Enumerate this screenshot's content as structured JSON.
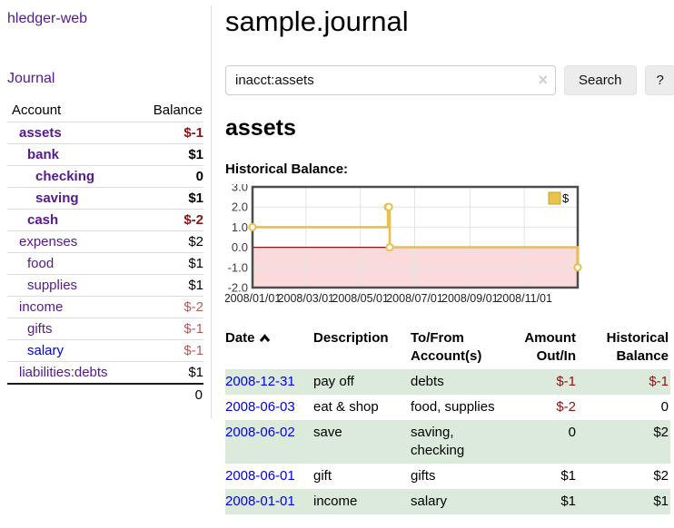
{
  "sidebar": {
    "brand": "hledger-web",
    "nav_journal": "Journal",
    "accounts": {
      "col_account": "Account",
      "col_balance": "Balance",
      "rows": [
        {
          "name": "assets",
          "balance": "$-1",
          "level": 1,
          "strong": true,
          "name_color": "purple",
          "balance_class": "neg-strong"
        },
        {
          "name": "bank",
          "balance": "$1",
          "level": 2,
          "strong": true,
          "name_color": "purple",
          "balance_class": "strong"
        },
        {
          "name": "checking",
          "balance": "0",
          "level": 3,
          "strong": true,
          "name_color": "purple",
          "balance_class": "strong"
        },
        {
          "name": "saving",
          "balance": "$1",
          "level": 3,
          "strong": true,
          "name_color": "purple",
          "balance_class": "strong"
        },
        {
          "name": "cash",
          "balance": "$-2",
          "level": 2,
          "strong": true,
          "name_color": "purple",
          "balance_class": "neg-strong"
        },
        {
          "name": "expenses",
          "balance": "$2",
          "level": 1,
          "strong": false,
          "name_color": "purple",
          "balance_class": "plain"
        },
        {
          "name": "food",
          "balance": "$1",
          "level": 2,
          "strong": false,
          "name_color": "purple",
          "balance_class": "plain"
        },
        {
          "name": "supplies",
          "balance": "$1",
          "level": 2,
          "strong": false,
          "name_color": "purple",
          "balance_class": "plain"
        },
        {
          "name": "income",
          "balance": "$-2",
          "level": 1,
          "strong": false,
          "name_color": "purple",
          "balance_class": "neg-soft"
        },
        {
          "name": "gifts",
          "balance": "$-1",
          "level": 2,
          "strong": false,
          "name_color": "purple",
          "balance_class": "neg-soft"
        },
        {
          "name": "salary",
          "balance": "$-1",
          "level": 2,
          "strong": false,
          "name_color": "blue",
          "balance_class": "neg-soft"
        },
        {
          "name": "liabilities:debts",
          "balance": "$1",
          "level": 1,
          "strong": false,
          "name_color": "purple",
          "balance_class": "plain"
        }
      ],
      "total": "0"
    }
  },
  "main": {
    "title": "sample.journal",
    "search": {
      "value": "inacct:assets",
      "clear_icon": "×",
      "search_label": "Search",
      "help_label": "?"
    },
    "heading": "assets",
    "chart_title": "Historical Balance:"
  },
  "chart_data": {
    "type": "line",
    "step": true,
    "title": "Historical Balance",
    "xdomain": [
      "2008-01-01",
      "2008-12-31"
    ],
    "ylim": [
      -2,
      3
    ],
    "yticks": [
      {
        "label": "3.0",
        "v": 3
      },
      {
        "label": "2.0",
        "v": 2
      },
      {
        "label": "1.0",
        "v": 1
      },
      {
        "label": "0.0",
        "v": 0
      },
      {
        "label": "-1.0",
        "v": -1
      },
      {
        "label": "-2.0",
        "v": -2
      }
    ],
    "xticks": [
      {
        "label": "2008/01/01",
        "date": "2008-01-01"
      },
      {
        "label": "2008/03/01",
        "date": "2008-03-01"
      },
      {
        "label": "2008/05/01",
        "date": "2008-05-01"
      },
      {
        "label": "2008/07/01",
        "date": "2008-07-01"
      },
      {
        "label": "2008/09/01",
        "date": "2008-09-01"
      },
      {
        "label": "2008/11/01",
        "date": "2008-11-01"
      }
    ],
    "series": [
      {
        "name": "$",
        "color": "#e9c04a",
        "points": [
          [
            "2008-01-01",
            1
          ],
          [
            "2008-06-01",
            2
          ],
          [
            "2008-06-02",
            2
          ],
          [
            "2008-06-03",
            0
          ],
          [
            "2008-12-31",
            -1
          ]
        ]
      }
    ],
    "legend": {
      "label": "$",
      "position": "top-right",
      "swatch_color": "#e9c34d",
      "swatch_border": "#c9a227"
    },
    "grid": true,
    "negative_region_color": "#fadada",
    "zero_line_color": "#8b1414",
    "border_color": "#4d4d4d",
    "grid_color": "#e3e3e3"
  },
  "register": {
    "headers": {
      "date": "Date",
      "description": "Description",
      "accounts": "To/From Account(s)",
      "amount": "Amount Out/In",
      "balance": "Historical Balance"
    },
    "rows": [
      {
        "date": "2008-12-31",
        "description": "pay off",
        "accounts": "debts",
        "amount": "$-1",
        "amount_negative": true,
        "balance": "$-1",
        "balance_negative": true
      },
      {
        "date": "2008-06-03",
        "description": "eat & shop",
        "accounts": "food, supplies",
        "amount": "$-2",
        "amount_negative": true,
        "balance": "0",
        "balance_negative": false
      },
      {
        "date": "2008-06-02",
        "description": "save",
        "accounts": "saving, checking",
        "amount": "0",
        "amount_negative": false,
        "balance": "$2",
        "balance_negative": false
      },
      {
        "date": "2008-06-01",
        "description": "gift",
        "accounts": "gifts",
        "amount": "$1",
        "amount_negative": false,
        "balance": "$2",
        "balance_negative": false
      },
      {
        "date": "2008-01-01",
        "description": "income",
        "accounts": "salary",
        "amount": "$1",
        "amount_negative": false,
        "balance": "$1",
        "balance_negative": false
      }
    ]
  },
  "colors": {
    "link_purple": "#551a8b",
    "link_blue": "#0000ee",
    "negative_strong": "#8b1414",
    "negative_soft": "#b25c5c",
    "row_green": "#dceadc"
  }
}
